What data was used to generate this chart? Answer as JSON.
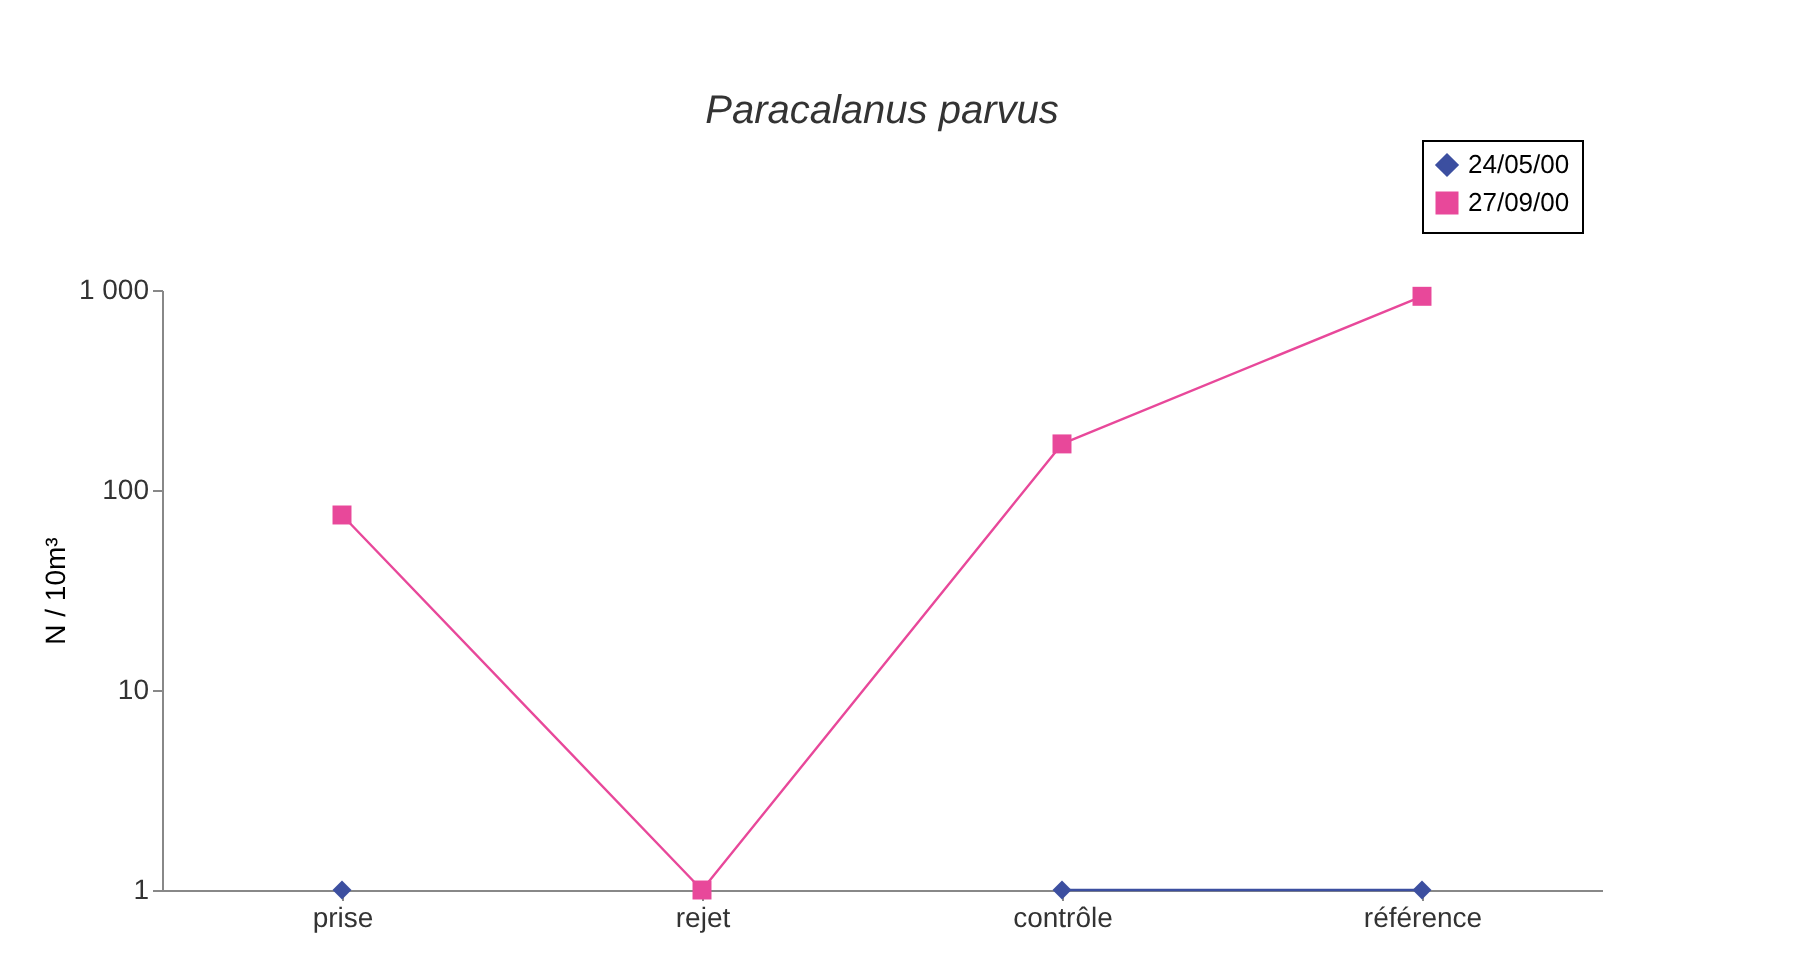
{
  "chart_data": {
    "type": "line",
    "title": "Paracalanus parvus",
    "ylabel": "N / 10m³",
    "categories": [
      "prise",
      "rejet",
      "contrôle",
      "référence"
    ],
    "series": [
      {
        "name": "24/05/00",
        "color": "#3c4fa0",
        "values": [
          1,
          null,
          1,
          1
        ],
        "marker": "diamond"
      },
      {
        "name": "27/09/00",
        "color": "#e8489a",
        "values": [
          75,
          1,
          170,
          930
        ],
        "marker": "square"
      }
    ],
    "log": "y",
    "ylim": [
      1,
      1000
    ],
    "yticks": [
      1,
      10,
      100,
      {
        "value": 1000,
        "label": "1 000"
      }
    ],
    "grid": false,
    "legend": "top right"
  }
}
